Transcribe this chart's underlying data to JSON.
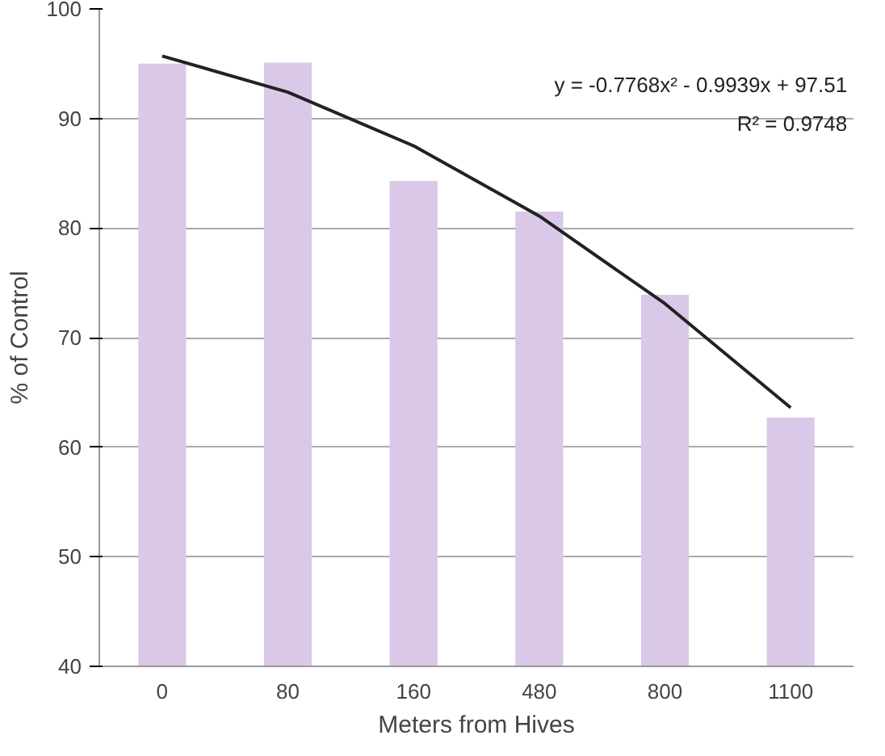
{
  "chart_data": {
    "type": "bar",
    "xlabel": "Meters from Hives",
    "ylabel": "% of Control",
    "categories": [
      "0",
      "80",
      "160",
      "480",
      "800",
      "1100"
    ],
    "series": [
      {
        "color": "#d9c8e8",
        "values": [
          95,
          95.1,
          84.3,
          81.5,
          73.9,
          62.7
        ]
      },
      {
        "type": "line",
        "color": "#222222",
        "values": [
          95.7,
          92.4,
          87.5,
          81.1,
          73.1,
          63.6
        ]
      }
    ],
    "ylim": [
      40,
      100
    ],
    "yticks": [
      40,
      50,
      60,
      70,
      80,
      90,
      100
    ],
    "grid": "y",
    "annotations": [
      "y = -0.7768x² - 0.9939x + 97.51",
      "R² = 0.9748"
    ]
  }
}
